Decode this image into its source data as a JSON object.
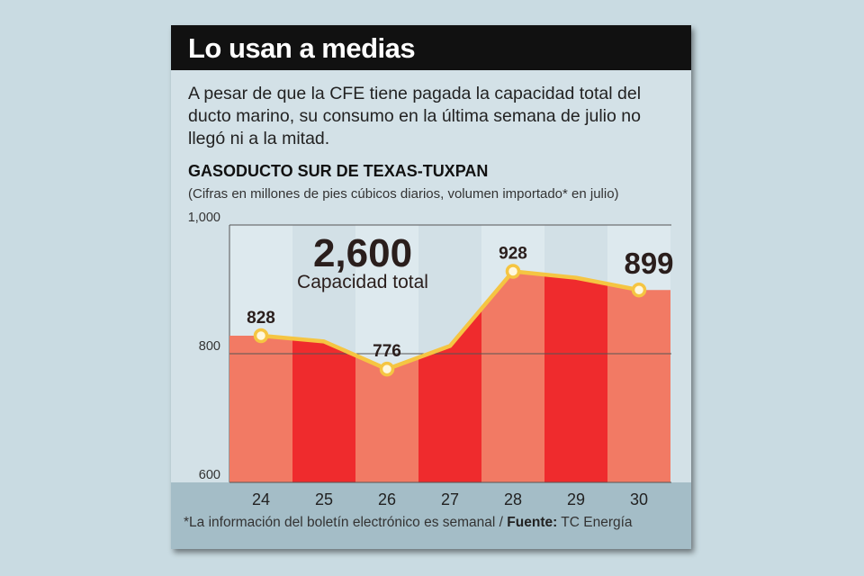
{
  "header": {
    "title": "Lo usan a medias"
  },
  "intro": "A pesar de que la CFE tiene pagada la capacidad total del ducto marino, su consumo en la última semana de julio no llegó ni a la mitad.",
  "chart_title": "GASODUCTO SUR DE TEXAS-TUXPAN",
  "chart_note": "(Cifras en millones de pies cúbicos diarios, volumen importado* en julio)",
  "capacity": {
    "value": "2,600",
    "label": "Capacidad total"
  },
  "footer": {
    "note": "*La información del boletín electrónico es semanal / ",
    "source_label": "Fuente:",
    "source": " TC Energía"
  },
  "colors": {
    "bar_light": "#f27a64",
    "bar_dark": "#ef2b2d",
    "line": "#f5c542",
    "background": "#d3e1e7",
    "title_bar": "#111111"
  },
  "chart_data": {
    "type": "area",
    "title": "GASODUCTO SUR DE TEXAS-TUXPAN",
    "x": [
      "24",
      "25",
      "26",
      "27",
      "28",
      "29",
      "30"
    ],
    "series": [
      {
        "values": [
          828,
          819,
          776,
          812,
          928,
          918,
          899
        ]
      }
    ],
    "point_labels": [
      {
        "index": 0,
        "text": "828"
      },
      {
        "index": 2,
        "text": "776"
      },
      {
        "index": 4,
        "text": "928"
      },
      {
        "index": 6,
        "text": "899"
      }
    ],
    "yticks": [
      "600",
      "800",
      "1,000"
    ],
    "ylim": [
      600,
      1000
    ],
    "grid": "horizontal"
  }
}
